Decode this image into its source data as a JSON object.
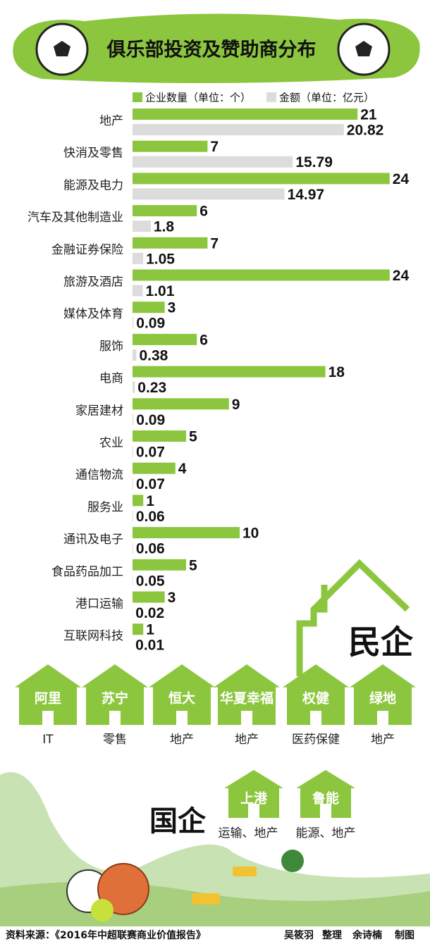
{
  "chart_data": {
    "type": "bar",
    "title": "俱乐部投资及赞助商分布",
    "categories": [
      "地产",
      "快消及零售",
      "能源及电力",
      "汽车及其他制造业",
      "金融证券保险",
      "旅游及酒店",
      "媒体及体育",
      "服饰",
      "电商",
      "家居建材",
      "农业",
      "通信物流",
      "服务业",
      "通讯及电子",
      "食品药品加工",
      "港口运输",
      "互联网科技"
    ],
    "series": [
      {
        "name": "企业数量（单位：个）",
        "color": "#8cc63e",
        "values": [
          21,
          7,
          24,
          6,
          7,
          24,
          3,
          6,
          18,
          9,
          5,
          4,
          1,
          10,
          5,
          3,
          1
        ]
      },
      {
        "name": "金额（单位：亿元）",
        "color": "#dcdcdc",
        "values": [
          20.82,
          15.79,
          14.97,
          1.8,
          1.05,
          1.01,
          0.09,
          0.38,
          0.23,
          0.09,
          0.07,
          0.07,
          0.06,
          0.06,
          0.05,
          0.02,
          0.01
        ]
      }
    ]
  },
  "private": {
    "label": "民企",
    "companies": [
      {
        "name": "阿里",
        "industry": "IT"
      },
      {
        "name": "苏宁",
        "industry": "零售"
      },
      {
        "name": "恒大",
        "industry": "地产"
      },
      {
        "name": "华夏幸福",
        "industry": "地产"
      },
      {
        "name": "权健",
        "industry": "医药保健"
      },
      {
        "name": "绿地",
        "industry": "地产"
      }
    ]
  },
  "state": {
    "label": "国企",
    "companies": [
      {
        "name": "上港",
        "industry": "运输、地产"
      },
      {
        "name": "鲁能",
        "industry": "能源、地产"
      }
    ]
  },
  "footer": {
    "source": "资料来源：《2016年中超联赛商业价值报告》",
    "author1": "吴筱羽",
    "role1": "整理",
    "author2": "余诗楠",
    "role2": "制图"
  }
}
